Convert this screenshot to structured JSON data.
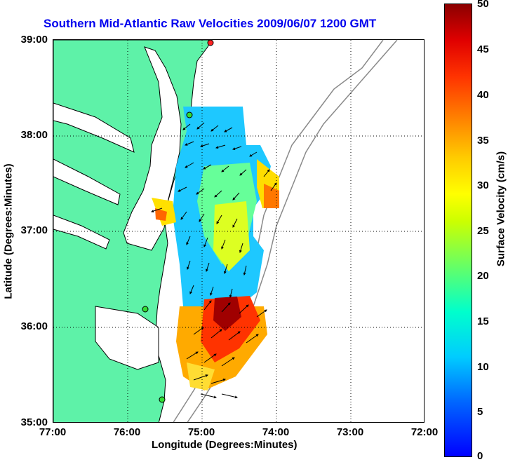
{
  "title": "Southern Mid-Atlantic Raw Velocities 2009/06/07 1200 GMT",
  "axes": {
    "xlabel": "Longitude (Degrees:Minutes)",
    "ylabel": "Latitude (Degrees:Minutes)",
    "xticks": [
      "77:00",
      "76:00",
      "75:00",
      "74:00",
      "73:00",
      "72:00"
    ],
    "yticks": [
      "39:00",
      "38:00",
      "37:00",
      "36:00",
      "35:00"
    ]
  },
  "colorbar": {
    "label": "Surface Velocity (cm/s)",
    "ticks": [
      "50",
      "45",
      "40",
      "35",
      "30",
      "25",
      "20",
      "15",
      "10",
      "5",
      "0"
    ],
    "min": 0,
    "max": 50
  },
  "colors": {
    "land": "#5ef2a8",
    "bathymetry": "#8a8a8a",
    "station": "#33dd33",
    "station_highlight": "#ff2222",
    "title": "#0000ee"
  }
}
